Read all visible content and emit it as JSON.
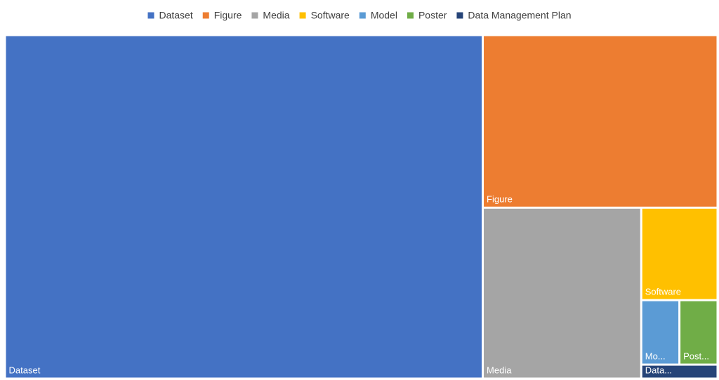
{
  "chart_data": {
    "type": "treemap",
    "title": "",
    "legend_position": "top",
    "label_color": "#ffffff",
    "legend_text_color": "#404040",
    "items": [
      {
        "name": "Dataset",
        "label": "Dataset",
        "value": 1000,
        "color": "#4472C4"
      },
      {
        "name": "Figure",
        "label": "Figure",
        "value": 247,
        "color": "#ED7D31"
      },
      {
        "name": "Media",
        "label": "Media",
        "value": 165,
        "color": "#A5A5A5"
      },
      {
        "name": "Software",
        "label": "Software",
        "value": 43,
        "color": "#FFC000"
      },
      {
        "name": "Model",
        "label": "Mo...",
        "value": 15,
        "color": "#5B9BD5"
      },
      {
        "name": "Poster",
        "label": "Post...",
        "value": 15,
        "color": "#70AD47"
      },
      {
        "name": "Data Management Plan",
        "label": "Data...",
        "value": 6.5,
        "color": "#264478"
      }
    ]
  }
}
